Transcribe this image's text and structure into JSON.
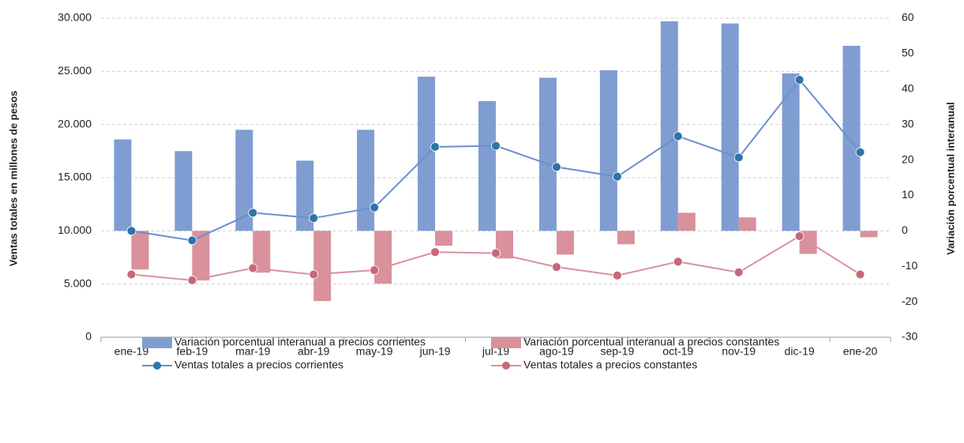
{
  "chart_data": {
    "type": "bar_line",
    "y_label": "Ventas totales en millones de pesos",
    "y2_label": "Variación porcentual interanual",
    "categories": [
      "ene-19",
      "feb-19",
      "mar-19",
      "abr-19",
      "may-19",
      "jun-19",
      "jul-19",
      "ago-19",
      "sep-19",
      "oct-19",
      "nov-19",
      "dic-19",
      "ene-20"
    ],
    "ylim": [
      0,
      30000
    ],
    "yticks": [
      0,
      {
        "value": 5000,
        "label": "5.000"
      },
      {
        "value": 10000,
        "label": "10.000"
      },
      {
        "value": 15000,
        "label": "15.000"
      },
      {
        "value": 20000,
        "label": "20.000"
      },
      {
        "value": 25000,
        "label": "25.000"
      },
      {
        "value": 30000,
        "label": "30.000"
      }
    ],
    "y2lim": [
      -30,
      60
    ],
    "y2ticks": [
      -30,
      -20,
      -10,
      0,
      10,
      20,
      30,
      40,
      50,
      60
    ],
    "grid": true,
    "series": [
      {
        "name": "Variación porcentual interanual a precios corrientes",
        "type": "bar",
        "axis": "y2",
        "color": "#7f9dd1",
        "values": [
          25.8,
          22.5,
          28.5,
          19.8,
          28.5,
          43.5,
          36.6,
          43.2,
          45.3,
          59.1,
          58.5,
          44.4,
          52.2
        ]
      },
      {
        "name": "Variación porcentual interanual a precios constantes",
        "type": "bar",
        "axis": "y2",
        "color": "#d9919c",
        "values": [
          -10.9,
          -14,
          -11.8,
          -19.8,
          -14.9,
          -4.2,
          -7.8,
          -6.7,
          -3.8,
          5.1,
          3.8,
          -6.5,
          -1.8
        ]
      },
      {
        "name": "Ventas totales a precios corrientes",
        "type": "line",
        "axis": "y",
        "color": "#6b8fcf",
        "marker_color": "#2e75a6",
        "values": [
          10000,
          9100,
          11700,
          11200,
          12200,
          17900,
          18000,
          16000,
          15100,
          18900,
          16900,
          24200,
          17400
        ]
      },
      {
        "name": "Ventas totales a precios constantes",
        "type": "line",
        "axis": "y",
        "color": "#d9919c",
        "marker_color": "#c8677a",
        "values": [
          5900,
          5350,
          6500,
          5900,
          6300,
          8000,
          7900,
          6600,
          5800,
          7100,
          6100,
          9500,
          5900
        ]
      }
    ]
  }
}
